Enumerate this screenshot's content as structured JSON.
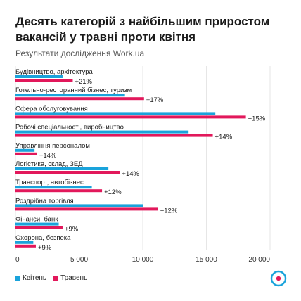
{
  "chart_data": {
    "type": "bar",
    "orientation": "horizontal",
    "title": "Десять категорій з найбільшим приростом вакансій у травні проти квітня",
    "subtitle": "Результати дослідження Work.ua",
    "categories": [
      "Будівництво, архітектура",
      "Готельно-ресторанний бізнес, туризм",
      "Сфера обслуговування",
      "Робочі спеціальності, виробництво",
      "Управління персоналом",
      "Логістика, склад, ЗЕД",
      "Транспорт, автобізнес",
      "Роздрібна торгівля",
      "Фінанси, банк",
      "Охорона, безпека"
    ],
    "series": [
      {
        "name": "Квітень",
        "color": "#1aa3db",
        "values": [
          3700,
          8600,
          15700,
          13600,
          1500,
          7300,
          6000,
          10000,
          3400,
          1400
        ]
      },
      {
        "name": "Травень",
        "color": "#e2185b",
        "values": [
          4500,
          10100,
          18100,
          15500,
          1700,
          8200,
          6800,
          11200,
          3700,
          1600
        ]
      }
    ],
    "growth_labels": [
      "+21%",
      "+17%",
      "+15%",
      "+14%",
      "+14%",
      "+14%",
      "+12%",
      "+12%",
      "+9%",
      "+9%"
    ],
    "x_ticks": [
      "0",
      "5 000",
      "10 000",
      "15 000",
      "20 000"
    ],
    "xlim": [
      0,
      20000
    ],
    "grid": true,
    "legend_position": "bottom-left"
  },
  "logo": {
    "name": "work-ua-logo",
    "color": "#1aa3db",
    "accent": "#e2185b"
  }
}
